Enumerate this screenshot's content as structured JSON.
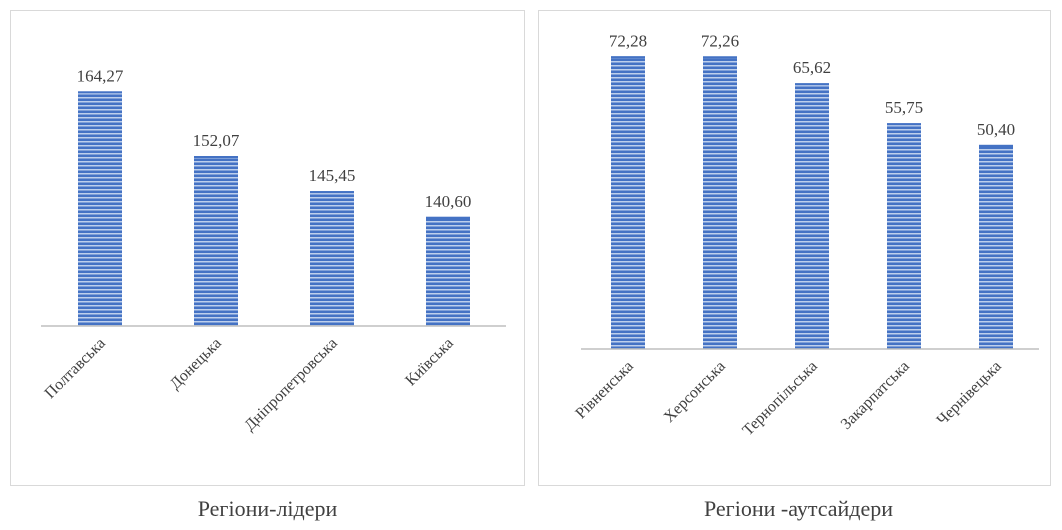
{
  "colors": {
    "bar": "#4472c4",
    "bar_stripe": "#dbe6f7",
    "axis": "#bfbfbf"
  },
  "chart_data": [
    {
      "type": "bar",
      "title": "",
      "caption": "Регіони-лідери",
      "categories": [
        "Полтавська",
        "Донецька",
        "Дніпропетровська",
        "Київська"
      ],
      "values": [
        164.27,
        152.07,
        145.45,
        140.6
      ],
      "value_labels": [
        "164,27",
        "152,07",
        "145,45",
        "140,60"
      ],
      "ylim": [
        120,
        170
      ],
      "grid": false
    },
    {
      "type": "bar",
      "title": "",
      "caption": "Регіони -аутсайдери",
      "categories": [
        "Рівненська",
        "Херсонська",
        "Тернопільська",
        "Закарпатська",
        "Чернівецька"
      ],
      "values": [
        72.28,
        72.26,
        65.62,
        55.75,
        50.4
      ],
      "value_labels": [
        "72,28",
        "72,26",
        "65,62",
        "55,75",
        "50,40"
      ],
      "ylim": [
        0,
        80
      ],
      "grid": false
    }
  ]
}
